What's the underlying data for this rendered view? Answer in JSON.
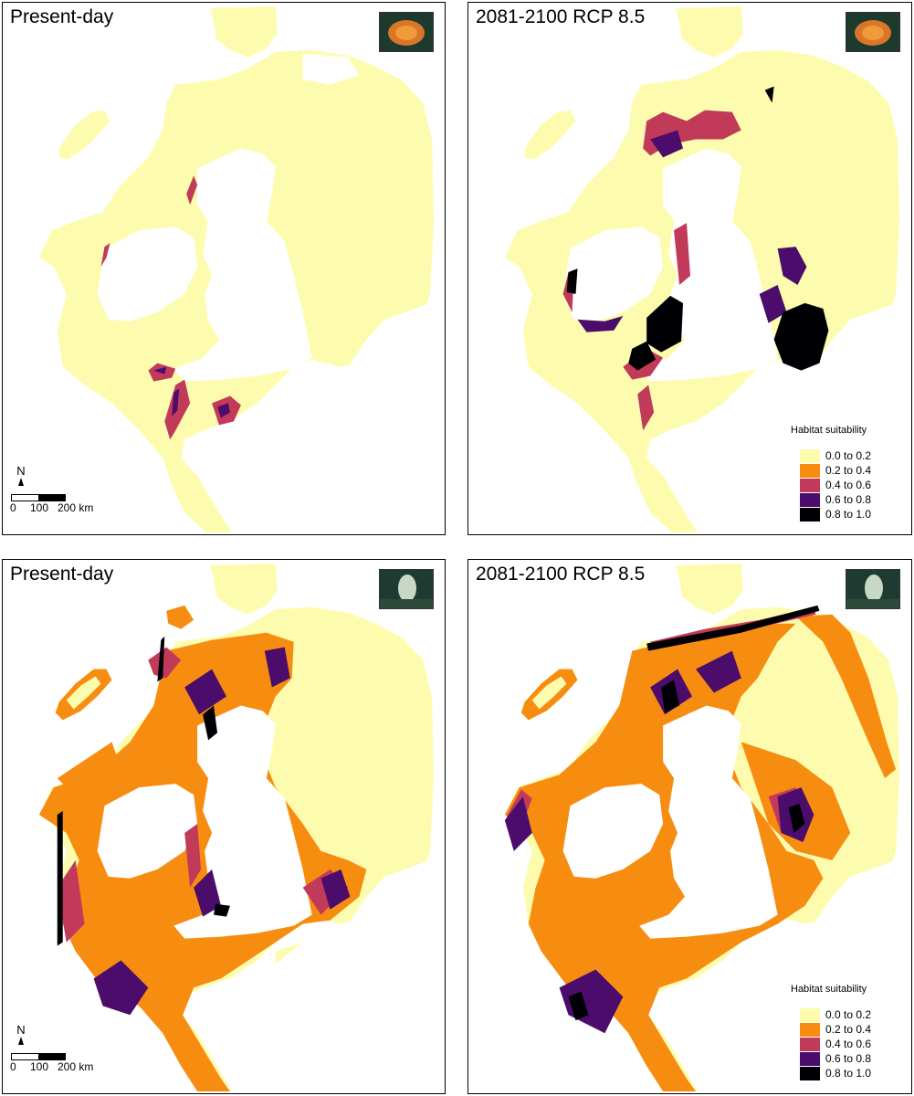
{
  "colors": {
    "c0": "#fdfcae",
    "c1": "#f78d10",
    "c2": "#c23a5a",
    "c3": "#4b0c6b",
    "c4": "#000004",
    "land": "#ffffff"
  },
  "panels": [
    {
      "title": "Present-day",
      "thumb": "coral-photo",
      "legend": false,
      "scalebar": true
    },
    {
      "title": "2081-2100 RCP 8.5",
      "thumb": "coral-photo",
      "legend": true,
      "scalebar": false
    },
    {
      "title": "Present-day",
      "thumb": "sponge-photo",
      "legend": false,
      "scalebar": true
    },
    {
      "title": "2081-2100 RCP 8.5",
      "thumb": "sponge-photo",
      "legend": true,
      "scalebar": false
    }
  ],
  "legend": {
    "title": "Habitat suitability",
    "items": [
      "0.0 to 0.2",
      "0.2 to 0.4",
      "0.4 to 0.6",
      "0.6 to 0.8",
      "0.8 to 1.0"
    ]
  },
  "scalebar": {
    "north": "N",
    "ticks": [
      "0",
      "100",
      "200 km"
    ]
  }
}
